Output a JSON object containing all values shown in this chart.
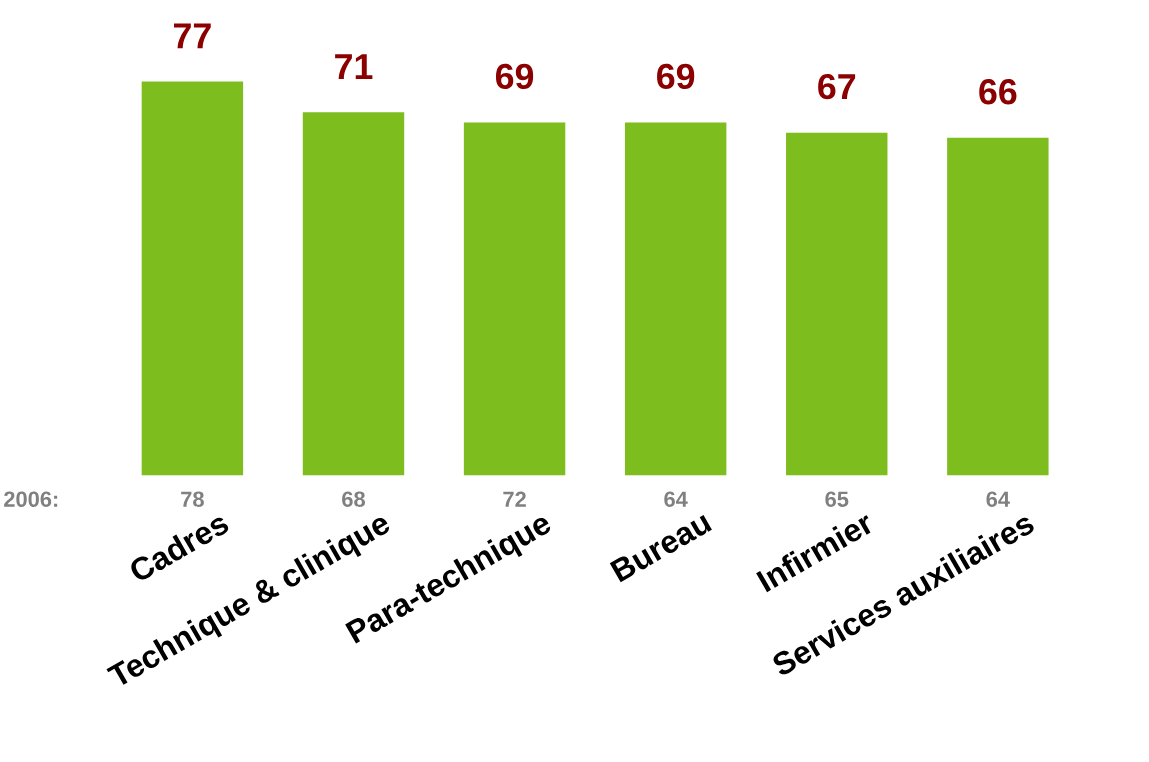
{
  "chart_data": {
    "type": "bar",
    "categories": [
      "Cadres",
      "Technique & clinique",
      "Para-technique",
      "Bureau",
      "Infirmier",
      "Services auxiliaires"
    ],
    "values": [
      77,
      71,
      69,
      69,
      67,
      66
    ],
    "color": "#7dbd1e",
    "data_labels": true,
    "annotations": [
      "2006:",
      "78",
      "68",
      "72",
      "64",
      "65",
      "64"
    ]
  }
}
